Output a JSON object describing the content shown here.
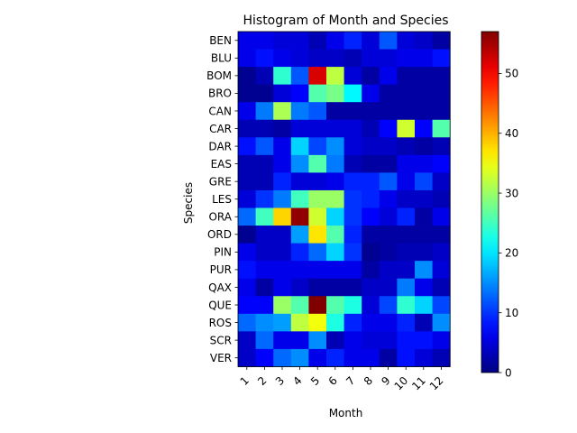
{
  "chart_data": {
    "type": "heatmap",
    "title": "Histogram of Month and Species",
    "xlabel": "Month",
    "ylabel": "Species",
    "x_categories": [
      "1",
      "2",
      "3",
      "4",
      "5",
      "6",
      "7",
      "8",
      "9",
      "10",
      "11",
      "12"
    ],
    "y_categories": [
      "BEN",
      "BLU",
      "BOM",
      "BRO",
      "CAN",
      "CAR",
      "DAR",
      "EAS",
      "GRE",
      "LES",
      "ORA",
      "ORD",
      "PIN",
      "PUR",
      "QAX",
      "QUE",
      "ROS",
      "SCR",
      "VER"
    ],
    "values": [
      [
        6,
        6,
        5,
        5,
        3,
        6,
        9,
        5,
        12,
        5,
        4,
        2
      ],
      [
        6,
        8,
        6,
        5,
        4,
        4,
        3,
        5,
        5,
        6,
        6,
        8
      ],
      [
        1,
        3,
        24,
        12,
        52,
        32,
        5,
        2,
        6,
        2,
        2,
        2
      ],
      [
        1,
        1,
        5,
        7,
        26,
        28,
        21,
        6,
        2,
        2,
        2,
        2
      ],
      [
        6,
        14,
        31,
        14,
        12,
        2,
        2,
        2,
        2,
        2,
        2,
        2
      ],
      [
        3,
        3,
        2,
        5,
        5,
        5,
        5,
        3,
        7,
        33,
        7,
        26
      ],
      [
        8,
        12,
        6,
        19,
        11,
        15,
        5,
        4,
        4,
        3,
        2,
        3
      ],
      [
        3,
        3,
        6,
        15,
        26,
        14,
        3,
        2,
        2,
        6,
        6,
        7
      ],
      [
        3,
        3,
        9,
        5,
        5,
        6,
        9,
        9,
        12,
        6,
        11,
        4
      ],
      [
        5,
        10,
        14,
        25,
        30,
        30,
        10,
        9,
        6,
        4,
        4,
        3
      ],
      [
        13,
        25,
        38,
        56,
        33,
        19,
        10,
        7,
        5,
        9,
        2,
        6
      ],
      [
        1,
        4,
        4,
        16,
        37,
        26,
        9,
        2,
        2,
        2,
        2,
        2
      ],
      [
        6,
        4,
        4,
        9,
        13,
        19,
        10,
        1,
        2,
        3,
        3,
        4
      ],
      [
        8,
        6,
        6,
        6,
        6,
        6,
        6,
        2,
        4,
        4,
        15,
        5
      ],
      [
        6,
        2,
        6,
        4,
        2,
        2,
        2,
        4,
        4,
        14,
        6,
        3
      ],
      [
        7,
        7,
        30,
        26,
        57,
        26,
        23,
        5,
        11,
        24,
        19,
        11
      ],
      [
        13,
        15,
        16,
        32,
        35,
        23,
        9,
        6,
        6,
        9,
        3,
        15
      ],
      [
        4,
        13,
        6,
        6,
        15,
        3,
        6,
        5,
        5,
        8,
        8,
        6
      ],
      [
        4,
        7,
        13,
        15,
        6,
        9,
        6,
        6,
        2,
        8,
        5,
        3
      ]
    ],
    "colorbar": {
      "colormap": "jet",
      "range": [
        0,
        57
      ],
      "ticks": [
        0,
        10,
        20,
        30,
        40,
        50
      ]
    }
  }
}
